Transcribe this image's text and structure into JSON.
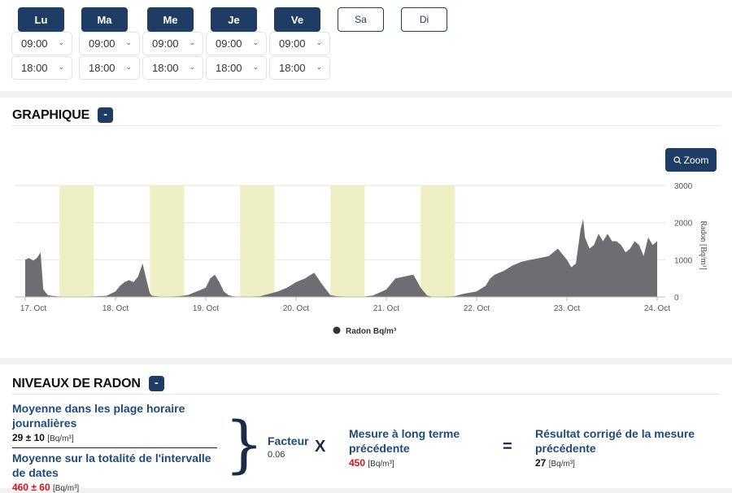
{
  "days": [
    {
      "label": "Lu",
      "active": true,
      "start": "09:00",
      "end": "18:00"
    },
    {
      "label": "Ma",
      "active": true,
      "start": "09:00",
      "end": "18:00"
    },
    {
      "label": "Me",
      "active": true,
      "start": "09:00",
      "end": "18:00"
    },
    {
      "label": "Je",
      "active": true,
      "start": "09:00",
      "end": "18:00"
    },
    {
      "label": "Ve",
      "active": true,
      "start": "09:00",
      "end": "18:00"
    },
    {
      "label": "Sa",
      "active": false
    },
    {
      "label": "Di",
      "active": false
    }
  ],
  "graph": {
    "title": "GRAPHIQUE",
    "collapse_label": "-",
    "zoom_label": "Zoom",
    "legend": "Radon Bq/m³"
  },
  "chart_data": {
    "type": "area",
    "ylabel": "Radon [Bq/m³]",
    "ylim": [
      0,
      3000
    ],
    "yticks": [
      "0",
      "1000",
      "2000",
      "3000"
    ],
    "xticks": [
      "17. Oct",
      "18. Oct",
      "19. Oct",
      "20. Oct",
      "21. Oct",
      "22. Oct",
      "23. Oct",
      "24. Oct"
    ],
    "xlim_days": [
      0,
      7
    ],
    "bands_days": [
      [
        0.38,
        0.76
      ],
      [
        1.38,
        1.76
      ],
      [
        2.38,
        2.76
      ],
      [
        3.38,
        3.76
      ],
      [
        4.38,
        4.76
      ]
    ],
    "band_color": "#efefc4",
    "series_color": "#6e6d72",
    "series": [
      {
        "name": "Radon Bq/m³",
        "x": [
          -0.05,
          0,
          0.04,
          0.09,
          0.13,
          0.17,
          0.2,
          0.25,
          0.28,
          0.3,
          0.35,
          0.4,
          0.5,
          0.6,
          0.7,
          0.8,
          0.9,
          1.0,
          1.05,
          1.1,
          1.15,
          1.2,
          1.25,
          1.3,
          1.35,
          1.38,
          1.4,
          1.45,
          1.5,
          1.55,
          1.6,
          1.7,
          1.8,
          1.9,
          2.0,
          2.05,
          2.1,
          2.15,
          2.2,
          2.25,
          2.3,
          2.38,
          2.45,
          2.5,
          2.6,
          2.7,
          2.8,
          2.9,
          3.0,
          3.1,
          3.2,
          3.3,
          3.38,
          3.45,
          3.55,
          3.65,
          3.75,
          3.85,
          4.0,
          4.1,
          4.2,
          4.3,
          4.38,
          4.45,
          4.5,
          4.55,
          4.65,
          4.75,
          4.85,
          5.0,
          5.1,
          5.15,
          5.2,
          5.3,
          5.4,
          5.5,
          5.6,
          5.7,
          5.8,
          5.9,
          6.0,
          6.05,
          6.1,
          6.15,
          6.18,
          6.2,
          6.25,
          6.3,
          6.35,
          6.4,
          6.45,
          6.5,
          6.55,
          6.6,
          6.65,
          6.7,
          6.75,
          6.8,
          6.85,
          6.9,
          6.95,
          7.0
        ],
        "y": [
          1100,
          1000,
          1050,
          980,
          1050,
          1200,
          200,
          50,
          40,
          30,
          20,
          10,
          5,
          10,
          10,
          20,
          30,
          150,
          300,
          400,
          450,
          400,
          550,
          900,
          400,
          100,
          40,
          20,
          10,
          10,
          10,
          20,
          50,
          150,
          250,
          500,
          600,
          400,
          150,
          50,
          20,
          5,
          5,
          10,
          20,
          80,
          150,
          250,
          400,
          500,
          650,
          300,
          50,
          20,
          10,
          5,
          10,
          40,
          200,
          500,
          550,
          600,
          250,
          40,
          10,
          5,
          10,
          20,
          80,
          150,
          300,
          500,
          600,
          700,
          850,
          950,
          1000,
          1050,
          1100,
          1300,
          1000,
          800,
          900,
          1800,
          2100,
          1600,
          1300,
          1400,
          1700,
          1500,
          1700,
          1500,
          1500,
          1400,
          1200,
          1300,
          1500,
          1400,
          1100,
          1600,
          1400,
          1500
        ]
      }
    ]
  },
  "levels": {
    "title": "NIVEAUX DE RADON",
    "collapse_label": "-",
    "avg_hours_label": "Moyenne dans les plage horaire journalières",
    "avg_hours_value": "29 ± 10",
    "avg_all_label": "Moyenne sur la totalité de l'intervalle de dates",
    "avg_all_value": "460 ± 60",
    "unit": "[Bq/m³]",
    "factor_label": "Facteur",
    "factor_value": "0.06",
    "times_symbol": "X",
    "long_term_label": "Mesure à long terme précédente",
    "long_term_value": "450",
    "equals_symbol": "=",
    "result_label": "Résultat corrigé de la mesure précédente",
    "result_value": "27",
    "brace": "}"
  }
}
